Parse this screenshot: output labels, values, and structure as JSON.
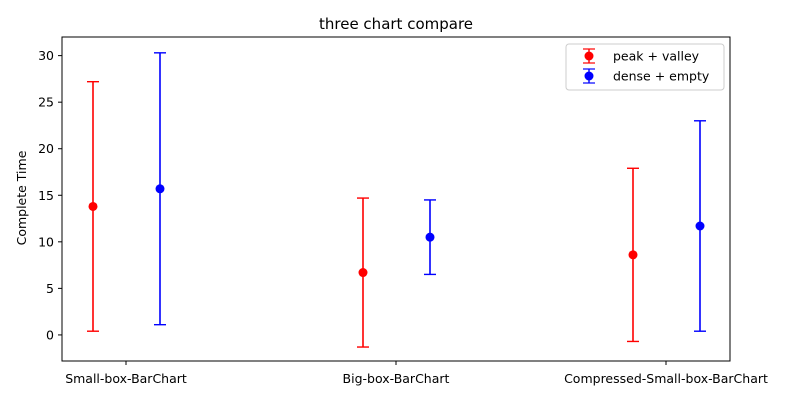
{
  "chart_data": {
    "type": "errorbar",
    "title": "three chart compare",
    "xlabel": "",
    "ylabel": "Complete Time",
    "categories": [
      "Small-box-BarChart",
      "Big-box-BarChart",
      "Compressed-Small-box-BarChart"
    ],
    "ylim": [
      -2.8,
      32
    ],
    "yticks": [
      0,
      5,
      10,
      15,
      20,
      25,
      30
    ],
    "grid": false,
    "legend_position": "top-right",
    "series": [
      {
        "name": "peak + valley",
        "color": "#ff0000",
        "means": [
          13.8,
          6.7,
          8.6
        ],
        "errors": [
          13.4,
          8.0,
          9.3
        ]
      },
      {
        "name": "dense + empty",
        "color": "#0000ff",
        "means": [
          15.7,
          10.5,
          11.7
        ],
        "errors": [
          14.6,
          4.0,
          11.3
        ]
      }
    ]
  }
}
